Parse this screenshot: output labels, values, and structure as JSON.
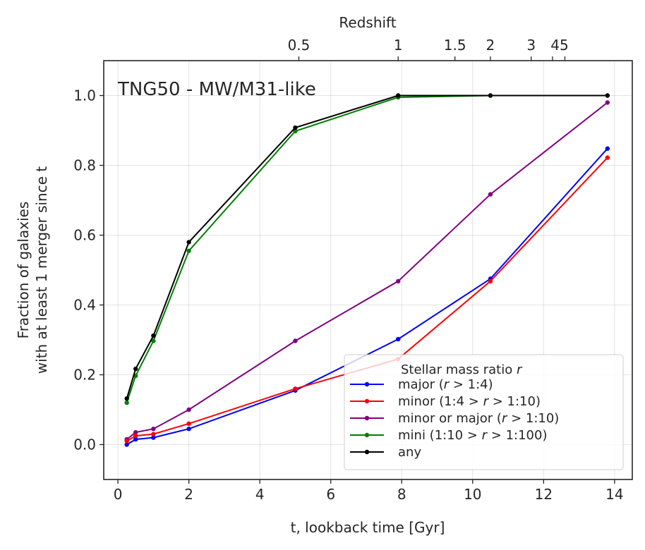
{
  "chart_data": {
    "type": "line",
    "annotation": "TNG50 - MW/M31-like",
    "xlabel": "t, lookback time [Gyr]",
    "ylabel_line1": "Fraction of galaxies",
    "ylabel_line2": "with at least 1 merger since t",
    "xlim": [
      -0.4,
      14.5
    ],
    "ylim": [
      -0.1,
      1.1
    ],
    "grid": true,
    "x_ticks": [
      0,
      2,
      4,
      6,
      8,
      10,
      12,
      14
    ],
    "y_ticks": [
      0.0,
      0.2,
      0.4,
      0.6,
      0.8,
      1.0
    ],
    "x_tick_labels": [
      "0",
      "2",
      "4",
      "6",
      "8",
      "10",
      "12",
      "14"
    ],
    "y_tick_labels": [
      "0.0",
      "0.2",
      "0.4",
      "0.6",
      "0.8",
      "1.0"
    ],
    "top_axis": {
      "label": "Redshift",
      "ticks": [
        {
          "z": "0.5",
          "t": 5.1
        },
        {
          "z": "1",
          "t": 7.9
        },
        {
          "z": "1.5",
          "t": 9.5
        },
        {
          "z": "2",
          "t": 10.5
        },
        {
          "z": "3",
          "t": 11.65
        },
        {
          "z": "4",
          "t": 12.25
        },
        {
          "z": "5",
          "t": 12.6
        }
      ],
      "labels": [
        {
          "text": "0.5",
          "t": 5.1
        },
        {
          "text": "1",
          "t": 7.9
        },
        {
          "text": "1.5",
          "t": 9.5
        },
        {
          "text": "2",
          "t": 10.5
        },
        {
          "text": "3",
          "t": 11.65
        },
        {
          "text": "45",
          "t": 12.45
        }
      ]
    },
    "legend": {
      "title_text": "Stellar mass ratio ",
      "title_var": "r",
      "placement": "lower-right"
    },
    "x": [
      0.25,
      0.5,
      1.0,
      2.0,
      5.0,
      7.9,
      10.5,
      13.8
    ],
    "series": [
      {
        "name": "mini",
        "label_parts": [
          "mini (1:10 > ",
          "r",
          " > 1:100)"
        ],
        "color": "#008000",
        "values": [
          0.12,
          0.197,
          0.297,
          0.555,
          0.898,
          0.995,
          1.0,
          1.0
        ]
      },
      {
        "name": "any",
        "label_parts": [
          "any"
        ],
        "color": "#000000",
        "values": [
          0.132,
          0.217,
          0.312,
          0.58,
          0.908,
          1.0,
          1.0,
          1.0
        ]
      },
      {
        "name": "minor or major",
        "label_parts": [
          "minor or major (",
          "r",
          " > 1:10)"
        ],
        "color": "#800080",
        "values": [
          0.015,
          0.035,
          0.045,
          0.1,
          0.297,
          0.468,
          0.717,
          0.98
        ]
      },
      {
        "name": "major",
        "label_parts": [
          "major (",
          "r",
          " > 1:4)"
        ],
        "color": "#0000ff",
        "values": [
          0.0,
          0.015,
          0.02,
          0.045,
          0.155,
          0.302,
          0.475,
          0.848
        ]
      },
      {
        "name": "minor",
        "label_parts": [
          "minor (1:4 > ",
          "r",
          " > 1:10)"
        ],
        "color": "#ff0000",
        "values": [
          0.01,
          0.025,
          0.03,
          0.06,
          0.16,
          0.245,
          0.468,
          0.822
        ]
      }
    ],
    "legend_order": [
      "major",
      "minor",
      "minor or major",
      "mini",
      "any"
    ]
  }
}
